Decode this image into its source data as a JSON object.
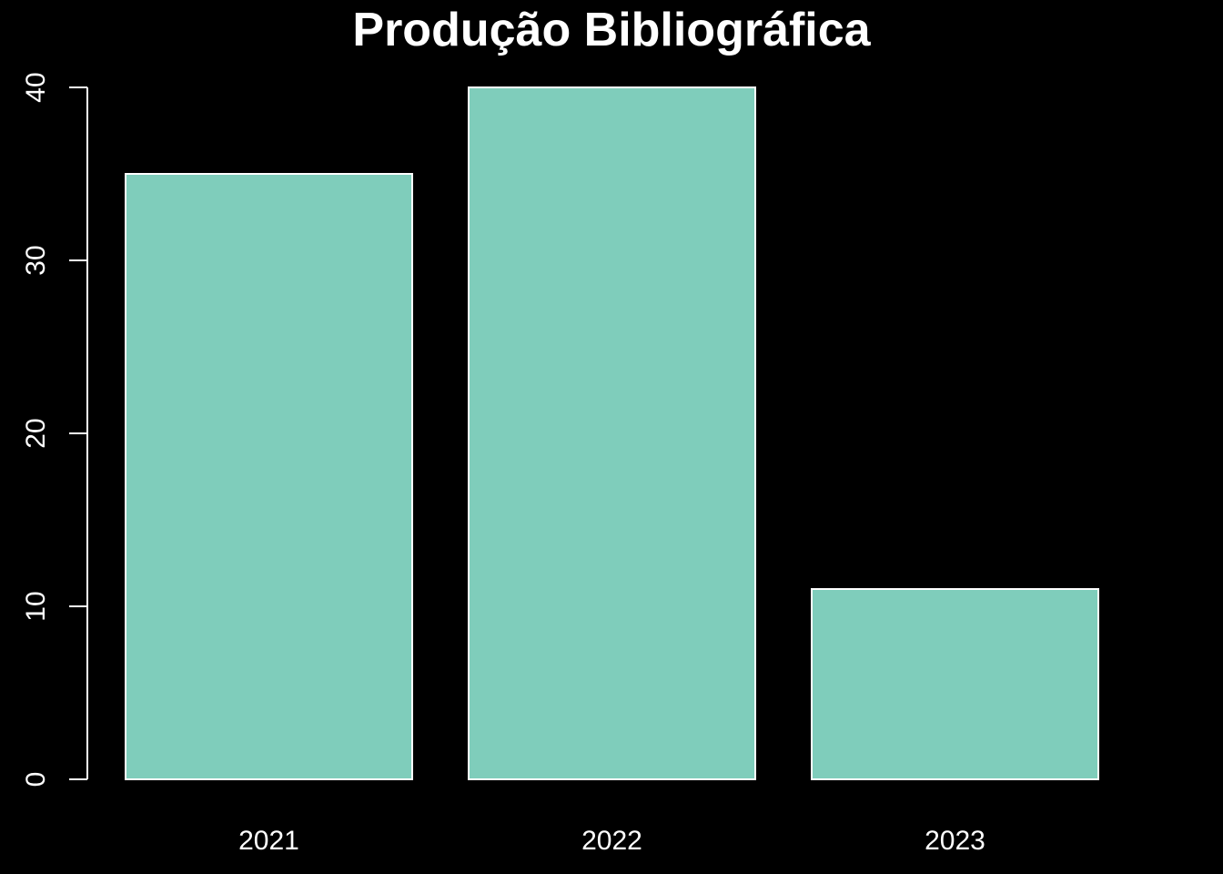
{
  "chart_data": {
    "type": "bar",
    "title": "Produção Bibliográfica",
    "categories": [
      "2021",
      "2022",
      "2023"
    ],
    "values": [
      35,
      40,
      11
    ],
    "xlabel": "",
    "ylabel": "",
    "ylim": [
      0,
      40
    ],
    "yticks": [
      0,
      10,
      20,
      30,
      40
    ],
    "grid": false,
    "legend": "none",
    "colors": {
      "background": "#000000",
      "bar_fill": "#7fcdbb",
      "bar_border": "#ffffff",
      "text": "#ffffff"
    }
  }
}
